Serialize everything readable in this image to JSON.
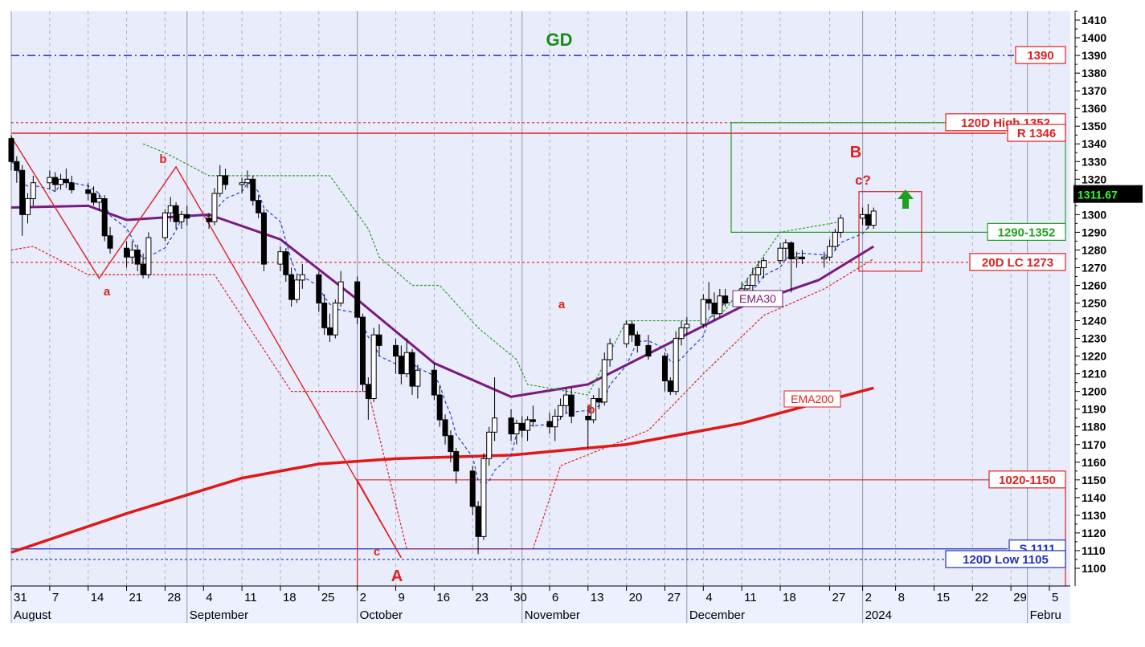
{
  "chart_data": {
    "type": "candlestick",
    "title": "GD",
    "ylim": [
      1090,
      1415
    ],
    "y_ticks": [
      1100,
      1110,
      1120,
      1130,
      1140,
      1150,
      1160,
      1170,
      1180,
      1190,
      1200,
      1210,
      1220,
      1230,
      1240,
      1250,
      1260,
      1270,
      1280,
      1290,
      1300,
      1310,
      1320,
      1330,
      1340,
      1350,
      1360,
      1370,
      1380,
      1390,
      1400,
      1410
    ],
    "x_ticks": [
      {
        "label": "31",
        "date": "2023-07-31"
      },
      {
        "label": "7",
        "date": "2023-08-07"
      },
      {
        "label": "14",
        "date": "2023-08-14"
      },
      {
        "label": "21",
        "date": "2023-08-21"
      },
      {
        "label": "28",
        "date": "2023-08-28"
      },
      {
        "label": "4",
        "date": "2023-09-04"
      },
      {
        "label": "11",
        "date": "2023-09-11"
      },
      {
        "label": "18",
        "date": "2023-09-18"
      },
      {
        "label": "25",
        "date": "2023-09-25"
      },
      {
        "label": "2",
        "date": "2023-10-02"
      },
      {
        "label": "9",
        "date": "2023-10-09"
      },
      {
        "label": "16",
        "date": "2023-10-16"
      },
      {
        "label": "23",
        "date": "2023-10-23"
      },
      {
        "label": "30",
        "date": "2023-10-30"
      },
      {
        "label": "6",
        "date": "2023-11-06"
      },
      {
        "label": "13",
        "date": "2023-11-13"
      },
      {
        "label": "20",
        "date": "2023-11-20"
      },
      {
        "label": "27",
        "date": "2023-11-27"
      },
      {
        "label": "4",
        "date": "2023-12-04"
      },
      {
        "label": "11",
        "date": "2023-12-11"
      },
      {
        "label": "18",
        "date": "2023-12-18"
      },
      {
        "label": "27",
        "date": "2023-12-27"
      },
      {
        "label": "2",
        "date": "2024-01-02"
      },
      {
        "label": "8",
        "date": "2024-01-08"
      },
      {
        "label": "15",
        "date": "2024-01-15"
      },
      {
        "label": "22",
        "date": "2024-01-22"
      },
      {
        "label": "29",
        "date": "2024-01-29"
      },
      {
        "label": "5",
        "date": "2024-02-05"
      }
    ],
    "month_labels": [
      {
        "label": "August",
        "date": "2023-07-31"
      },
      {
        "label": "September",
        "date": "2023-09-01"
      },
      {
        "label": "October",
        "date": "2023-10-02"
      },
      {
        "label": "November",
        "date": "2023-11-01"
      },
      {
        "label": "December",
        "date": "2023-12-01"
      },
      {
        "label": "2024",
        "date": "2024-01-02"
      },
      {
        "label": "Febru",
        "date": "2024-02-01"
      }
    ],
    "last_price": {
      "value": 1311.67,
      "label": "1311.67"
    },
    "ohlc": [
      {
        "date": "2023-07-31",
        "o": 1343,
        "h": 1345,
        "l": 1325,
        "c": 1330
      },
      {
        "date": "2023-08-01",
        "o": 1330,
        "h": 1333,
        "l": 1318,
        "c": 1325
      },
      {
        "date": "2023-08-02",
        "o": 1325,
        "h": 1328,
        "l": 1288,
        "c": 1300
      },
      {
        "date": "2023-08-03",
        "o": 1300,
        "h": 1312,
        "l": 1295,
        "c": 1309
      },
      {
        "date": "2023-08-04",
        "o": 1309,
        "h": 1322,
        "l": 1305,
        "c": 1318
      },
      {
        "date": "2023-08-07",
        "o": 1318,
        "h": 1325,
        "l": 1314,
        "c": 1321
      },
      {
        "date": "2023-08-08",
        "o": 1321,
        "h": 1324,
        "l": 1313,
        "c": 1317
      },
      {
        "date": "2023-08-09",
        "o": 1317,
        "h": 1323,
        "l": 1314,
        "c": 1320
      },
      {
        "date": "2023-08-10",
        "o": 1320,
        "h": 1326,
        "l": 1315,
        "c": 1318
      },
      {
        "date": "2023-08-11",
        "o": 1318,
        "h": 1322,
        "l": 1312,
        "c": 1314
      },
      {
        "date": "2023-08-14",
        "o": 1314,
        "h": 1318,
        "l": 1308,
        "c": 1312
      },
      {
        "date": "2023-08-15",
        "o": 1312,
        "h": 1316,
        "l": 1305,
        "c": 1307
      },
      {
        "date": "2023-08-16",
        "o": 1307,
        "h": 1312,
        "l": 1302,
        "c": 1309
      },
      {
        "date": "2023-08-17",
        "o": 1309,
        "h": 1311,
        "l": 1285,
        "c": 1288
      },
      {
        "date": "2023-08-18",
        "o": 1288,
        "h": 1293,
        "l": 1278,
        "c": 1281
      },
      {
        "date": "2023-08-21",
        "o": 1281,
        "h": 1285,
        "l": 1270,
        "c": 1276
      },
      {
        "date": "2023-08-22",
        "o": 1276,
        "h": 1285,
        "l": 1272,
        "c": 1280
      },
      {
        "date": "2023-08-23",
        "o": 1280,
        "h": 1283,
        "l": 1268,
        "c": 1272
      },
      {
        "date": "2023-08-24",
        "o": 1272,
        "h": 1278,
        "l": 1264,
        "c": 1266
      },
      {
        "date": "2023-08-25",
        "o": 1266,
        "h": 1290,
        "l": 1264,
        "c": 1287
      },
      {
        "date": "2023-08-28",
        "o": 1287,
        "h": 1303,
        "l": 1285,
        "c": 1301
      },
      {
        "date": "2023-08-29",
        "o": 1301,
        "h": 1310,
        "l": 1296,
        "c": 1305
      },
      {
        "date": "2023-08-30",
        "o": 1305,
        "h": 1307,
        "l": 1292,
        "c": 1296
      },
      {
        "date": "2023-08-31",
        "o": 1296,
        "h": 1302,
        "l": 1292,
        "c": 1300
      },
      {
        "date": "2023-09-01",
        "o": 1300,
        "h": 1305,
        "l": 1294,
        "c": 1298
      },
      {
        "date": "2023-09-05",
        "o": 1298,
        "h": 1301,
        "l": 1292,
        "c": 1296
      },
      {
        "date": "2023-09-06",
        "o": 1296,
        "h": 1315,
        "l": 1294,
        "c": 1312
      },
      {
        "date": "2023-09-07",
        "o": 1312,
        "h": 1328,
        "l": 1310,
        "c": 1322
      },
      {
        "date": "2023-09-08",
        "o": 1322,
        "h": 1326,
        "l": 1314,
        "c": 1317
      },
      {
        "date": "2023-09-11",
        "o": 1317,
        "h": 1321,
        "l": 1312,
        "c": 1318
      },
      {
        "date": "2023-09-12",
        "o": 1318,
        "h": 1325,
        "l": 1315,
        "c": 1320
      },
      {
        "date": "2023-09-13",
        "o": 1320,
        "h": 1322,
        "l": 1305,
        "c": 1308
      },
      {
        "date": "2023-09-14",
        "o": 1308,
        "h": 1311,
        "l": 1298,
        "c": 1301
      },
      {
        "date": "2023-09-15",
        "o": 1301,
        "h": 1303,
        "l": 1268,
        "c": 1272
      },
      {
        "date": "2023-09-18",
        "o": 1272,
        "h": 1282,
        "l": 1268,
        "c": 1279
      },
      {
        "date": "2023-09-19",
        "o": 1279,
        "h": 1281,
        "l": 1262,
        "c": 1266
      },
      {
        "date": "2023-09-20",
        "o": 1266,
        "h": 1270,
        "l": 1248,
        "c": 1252
      },
      {
        "date": "2023-09-21",
        "o": 1252,
        "h": 1266,
        "l": 1250,
        "c": 1263
      },
      {
        "date": "2023-09-22",
        "o": 1263,
        "h": 1272,
        "l": 1258,
        "c": 1266
      },
      {
        "date": "2023-09-25",
        "o": 1266,
        "h": 1268,
        "l": 1245,
        "c": 1250
      },
      {
        "date": "2023-09-26",
        "o": 1250,
        "h": 1255,
        "l": 1232,
        "c": 1236
      },
      {
        "date": "2023-09-27",
        "o": 1236,
        "h": 1244,
        "l": 1228,
        "c": 1232
      },
      {
        "date": "2023-09-28",
        "o": 1232,
        "h": 1252,
        "l": 1230,
        "c": 1250
      },
      {
        "date": "2023-09-29",
        "o": 1250,
        "h": 1268,
        "l": 1248,
        "c": 1262
      },
      {
        "date": "2023-10-02",
        "o": 1262,
        "h": 1265,
        "l": 1238,
        "c": 1242
      },
      {
        "date": "2023-10-03",
        "o": 1242,
        "h": 1244,
        "l": 1200,
        "c": 1204
      },
      {
        "date": "2023-10-04",
        "o": 1204,
        "h": 1208,
        "l": 1184,
        "c": 1196
      },
      {
        "date": "2023-10-05",
        "o": 1196,
        "h": 1236,
        "l": 1194,
        "c": 1232
      },
      {
        "date": "2023-10-06",
        "o": 1232,
        "h": 1238,
        "l": 1220,
        "c": 1226
      },
      {
        "date": "2023-10-09",
        "o": 1226,
        "h": 1230,
        "l": 1210,
        "c": 1220
      },
      {
        "date": "2023-10-10",
        "o": 1220,
        "h": 1226,
        "l": 1204,
        "c": 1210
      },
      {
        "date": "2023-10-11",
        "o": 1210,
        "h": 1230,
        "l": 1208,
        "c": 1222
      },
      {
        "date": "2023-10-12",
        "o": 1222,
        "h": 1224,
        "l": 1198,
        "c": 1203
      },
      {
        "date": "2023-10-13",
        "o": 1203,
        "h": 1215,
        "l": 1196,
        "c": 1212
      },
      {
        "date": "2023-10-16",
        "o": 1212,
        "h": 1216,
        "l": 1195,
        "c": 1198
      },
      {
        "date": "2023-10-17",
        "o": 1198,
        "h": 1203,
        "l": 1180,
        "c": 1184
      },
      {
        "date": "2023-10-18",
        "o": 1184,
        "h": 1187,
        "l": 1170,
        "c": 1175
      },
      {
        "date": "2023-10-19",
        "o": 1175,
        "h": 1178,
        "l": 1160,
        "c": 1166
      },
      {
        "date": "2023-10-20",
        "o": 1166,
        "h": 1168,
        "l": 1148,
        "c": 1155
      },
      {
        "date": "2023-10-23",
        "o": 1155,
        "h": 1158,
        "l": 1130,
        "c": 1135
      },
      {
        "date": "2023-10-24",
        "o": 1135,
        "h": 1138,
        "l": 1108,
        "c": 1118
      },
      {
        "date": "2023-10-25",
        "o": 1118,
        "h": 1165,
        "l": 1116,
        "c": 1162
      },
      {
        "date": "2023-10-26",
        "o": 1162,
        "h": 1180,
        "l": 1158,
        "c": 1177
      },
      {
        "date": "2023-10-27",
        "o": 1177,
        "h": 1208,
        "l": 1172,
        "c": 1185
      },
      {
        "date": "2023-10-30",
        "o": 1185,
        "h": 1190,
        "l": 1172,
        "c": 1176
      },
      {
        "date": "2023-10-31",
        "o": 1176,
        "h": 1184,
        "l": 1170,
        "c": 1182
      },
      {
        "date": "2023-11-01",
        "o": 1182,
        "h": 1186,
        "l": 1174,
        "c": 1178
      },
      {
        "date": "2023-11-02",
        "o": 1178,
        "h": 1186,
        "l": 1172,
        "c": 1184
      },
      {
        "date": "2023-11-03",
        "o": 1184,
        "h": 1192,
        "l": 1180,
        "c": 1183
      },
      {
        "date": "2023-11-06",
        "o": 1183,
        "h": 1188,
        "l": 1176,
        "c": 1180
      },
      {
        "date": "2023-11-07",
        "o": 1180,
        "h": 1190,
        "l": 1172,
        "c": 1186
      },
      {
        "date": "2023-11-08",
        "o": 1186,
        "h": 1196,
        "l": 1184,
        "c": 1192
      },
      {
        "date": "2023-11-09",
        "o": 1192,
        "h": 1202,
        "l": 1188,
        "c": 1198
      },
      {
        "date": "2023-11-10",
        "o": 1198,
        "h": 1202,
        "l": 1182,
        "c": 1186
      },
      {
        "date": "2023-11-13",
        "o": 1186,
        "h": 1192,
        "l": 1168,
        "c": 1184
      },
      {
        "date": "2023-11-14",
        "o": 1184,
        "h": 1198,
        "l": 1182,
        "c": 1196
      },
      {
        "date": "2023-11-15",
        "o": 1196,
        "h": 1202,
        "l": 1190,
        "c": 1194
      },
      {
        "date": "2023-11-16",
        "o": 1194,
        "h": 1222,
        "l": 1192,
        "c": 1218
      },
      {
        "date": "2023-11-17",
        "o": 1218,
        "h": 1230,
        "l": 1214,
        "c": 1227
      },
      {
        "date": "2023-11-20",
        "o": 1227,
        "h": 1240,
        "l": 1225,
        "c": 1238
      },
      {
        "date": "2023-11-21",
        "o": 1238,
        "h": 1240,
        "l": 1228,
        "c": 1232
      },
      {
        "date": "2023-11-22",
        "o": 1232,
        "h": 1234,
        "l": 1222,
        "c": 1226
      },
      {
        "date": "2023-11-24",
        "o": 1226,
        "h": 1232,
        "l": 1218,
        "c": 1220
      },
      {
        "date": "2023-11-27",
        "o": 1220,
        "h": 1222,
        "l": 1200,
        "c": 1206
      },
      {
        "date": "2023-11-28",
        "o": 1206,
        "h": 1208,
        "l": 1198,
        "c": 1200
      },
      {
        "date": "2023-11-29",
        "o": 1200,
        "h": 1234,
        "l": 1198,
        "c": 1230
      },
      {
        "date": "2023-11-30",
        "o": 1230,
        "h": 1240,
        "l": 1226,
        "c": 1236
      },
      {
        "date": "2023-12-01",
        "o": 1236,
        "h": 1242,
        "l": 1232,
        "c": 1238
      },
      {
        "date": "2023-12-04",
        "o": 1238,
        "h": 1255,
        "l": 1236,
        "c": 1252
      },
      {
        "date": "2023-12-05",
        "o": 1252,
        "h": 1262,
        "l": 1246,
        "c": 1250
      },
      {
        "date": "2023-12-06",
        "o": 1250,
        "h": 1256,
        "l": 1240,
        "c": 1244
      },
      {
        "date": "2023-12-07",
        "o": 1244,
        "h": 1258,
        "l": 1242,
        "c": 1254
      },
      {
        "date": "2023-12-08",
        "o": 1254,
        "h": 1258,
        "l": 1248,
        "c": 1250
      },
      {
        "date": "2023-12-11",
        "o": 1250,
        "h": 1262,
        "l": 1248,
        "c": 1258
      },
      {
        "date": "2023-12-12",
        "o": 1258,
        "h": 1264,
        "l": 1254,
        "c": 1260
      },
      {
        "date": "2023-12-13",
        "o": 1260,
        "h": 1270,
        "l": 1256,
        "c": 1266
      },
      {
        "date": "2023-12-14",
        "o": 1266,
        "h": 1274,
        "l": 1262,
        "c": 1270
      },
      {
        "date": "2023-12-15",
        "o": 1270,
        "h": 1276,
        "l": 1264,
        "c": 1274
      },
      {
        "date": "2023-12-18",
        "o": 1274,
        "h": 1284,
        "l": 1272,
        "c": 1281
      },
      {
        "date": "2023-12-19",
        "o": 1281,
        "h": 1286,
        "l": 1274,
        "c": 1284
      },
      {
        "date": "2023-12-20",
        "o": 1284,
        "h": 1285,
        "l": 1256,
        "c": 1275
      },
      {
        "date": "2023-12-21",
        "o": 1275,
        "h": 1279,
        "l": 1270,
        "c": 1276
      },
      {
        "date": "2023-12-22",
        "o": 1276,
        "h": 1280,
        "l": 1272,
        "c": 1275
      },
      {
        "date": "2023-12-26",
        "o": 1275,
        "h": 1279,
        "l": 1270,
        "c": 1276
      },
      {
        "date": "2023-12-27",
        "o": 1276,
        "h": 1286,
        "l": 1274,
        "c": 1282
      },
      {
        "date": "2023-12-28",
        "o": 1282,
        "h": 1292,
        "l": 1280,
        "c": 1290
      },
      {
        "date": "2023-12-29",
        "o": 1290,
        "h": 1300,
        "l": 1287,
        "c": 1298
      },
      {
        "date": "2024-01-02",
        "o": 1298,
        "h": 1304,
        "l": 1294,
        "c": 1300
      },
      {
        "date": "2024-01-03",
        "o": 1300,
        "h": 1306,
        "l": 1292,
        "c": 1294
      },
      {
        "date": "2024-01-04",
        "o": 1294,
        "h": 1304,
        "l": 1292,
        "c": 1302
      }
    ]
  }
}
